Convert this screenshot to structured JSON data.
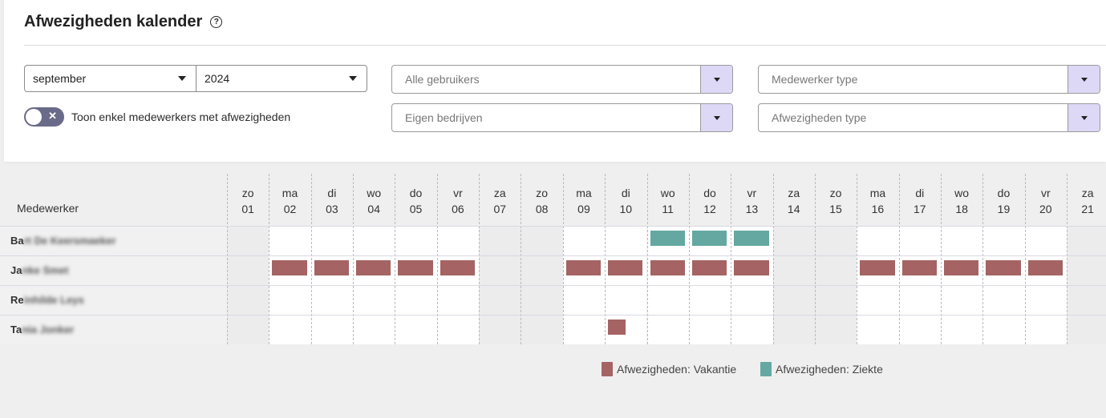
{
  "header": {
    "title": "Afwezigheden kalender",
    "help_icon": "question-circle-icon"
  },
  "filters": {
    "month": {
      "value": "september"
    },
    "year": {
      "value": "2024"
    },
    "users": {
      "placeholder": "Alle gebruikers"
    },
    "companies": {
      "placeholder": "Eigen bedrijven"
    },
    "employee_type": {
      "placeholder": "Medewerker type"
    },
    "absence_type": {
      "placeholder": "Afwezigheden type"
    },
    "toggle_label": "Toon enkel medewerkers met afwezigheden"
  },
  "calendar": {
    "employee_header": "Medewerker",
    "days": [
      {
        "dow": "zo",
        "day": "01",
        "weekend": true
      },
      {
        "dow": "ma",
        "day": "02",
        "weekend": false
      },
      {
        "dow": "di",
        "day": "03",
        "weekend": false
      },
      {
        "dow": "wo",
        "day": "04",
        "weekend": false
      },
      {
        "dow": "do",
        "day": "05",
        "weekend": false
      },
      {
        "dow": "vr",
        "day": "06",
        "weekend": false
      },
      {
        "dow": "za",
        "day": "07",
        "weekend": true
      },
      {
        "dow": "zo",
        "day": "08",
        "weekend": true
      },
      {
        "dow": "ma",
        "day": "09",
        "weekend": false
      },
      {
        "dow": "di",
        "day": "10",
        "weekend": false
      },
      {
        "dow": "wo",
        "day": "11",
        "weekend": false
      },
      {
        "dow": "do",
        "day": "12",
        "weekend": false
      },
      {
        "dow": "vr",
        "day": "13",
        "weekend": false
      },
      {
        "dow": "za",
        "day": "14",
        "weekend": true
      },
      {
        "dow": "zo",
        "day": "15",
        "weekend": true
      },
      {
        "dow": "ma",
        "day": "16",
        "weekend": false
      },
      {
        "dow": "di",
        "day": "17",
        "weekend": false
      },
      {
        "dow": "wo",
        "day": "18",
        "weekend": false
      },
      {
        "dow": "do",
        "day": "19",
        "weekend": false
      },
      {
        "dow": "vr",
        "day": "20",
        "weekend": false
      },
      {
        "dow": "za",
        "day": "21",
        "weekend": true
      }
    ],
    "employees": [
      {
        "visible": "Ba",
        "hidden": "rt De Keersmaeker",
        "absences": [
          {
            "type": "ziekte",
            "days": [
              "11",
              "12",
              "13"
            ],
            "fraction": 1
          }
        ]
      },
      {
        "visible": "Ja",
        "hidden": "nke Smet",
        "absences": [
          {
            "type": "vakantie",
            "days": [
              "02",
              "03",
              "04",
              "05",
              "06",
              "09",
              "10",
              "11",
              "12",
              "13",
              "16",
              "17",
              "18",
              "19",
              "20"
            ],
            "fraction": 1
          }
        ]
      },
      {
        "visible": "Re",
        "hidden": "inhilde Leys",
        "absences": []
      },
      {
        "visible": "Ta",
        "hidden": "nia Jonker",
        "absences": [
          {
            "type": "vakantie",
            "days": [
              "10"
            ],
            "fraction": 0.5
          }
        ]
      }
    ]
  },
  "legend": [
    {
      "label": "Afwezigheden: Vakantie",
      "color": "#a56363"
    },
    {
      "label": "Afwezigheden: Ziekte",
      "color": "#64a8a1"
    }
  ],
  "colors": {
    "vakantie": "#a56363",
    "ziekte": "#64a8a1",
    "weekend": "#ececec",
    "accent": "#dcd8f6"
  }
}
